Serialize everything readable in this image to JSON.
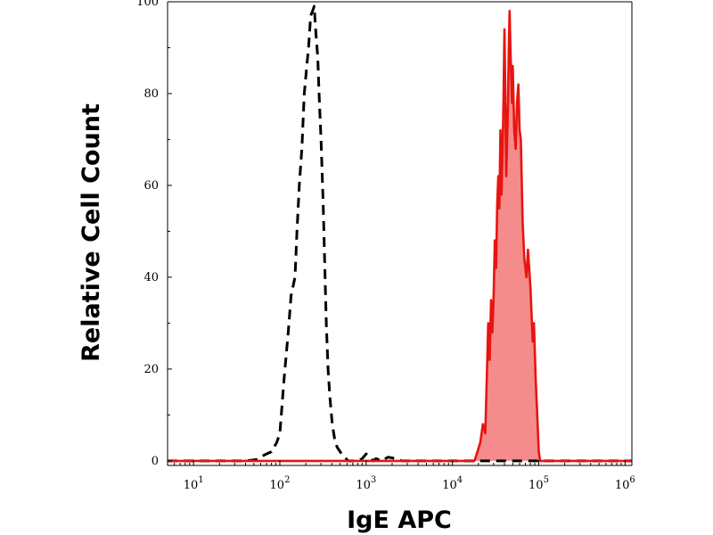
{
  "chart_data": {
    "type": "area",
    "title": "",
    "xlabel": "IgE APC",
    "ylabel": "Relative Cell Count",
    "xscale": "log",
    "xlim": [
      5,
      1200000
    ],
    "ylim": [
      -1,
      100
    ],
    "x_ticks": [
      {
        "base": "10",
        "exp": "1",
        "value": 10
      },
      {
        "base": "10",
        "exp": "2",
        "value": 100
      },
      {
        "base": "10",
        "exp": "3",
        "value": 1000
      },
      {
        "base": "10",
        "exp": "4",
        "value": 10000
      },
      {
        "base": "10",
        "exp": "5",
        "value": 100000
      },
      {
        "base": "10",
        "exp": "6",
        "value": 1000000
      }
    ],
    "y_ticks": [
      {
        "label": "0",
        "value": 0
      },
      {
        "label": "20",
        "value": 20
      },
      {
        "label": "40",
        "value": 40
      },
      {
        "label": "60",
        "value": 60
      },
      {
        "label": "80",
        "value": 80
      },
      {
        "label": "100",
        "value": 100
      }
    ],
    "grid": false,
    "legend": "none",
    "series": [
      {
        "style": "dashed",
        "color": "#000000",
        "fill": "none",
        "points": [
          [
            5,
            0
          ],
          [
            40,
            0
          ],
          [
            55,
            0.3
          ],
          [
            62,
            1
          ],
          [
            70,
            1.5
          ],
          [
            80,
            2
          ],
          [
            92,
            4
          ],
          [
            100,
            6
          ],
          [
            112,
            18
          ],
          [
            125,
            28
          ],
          [
            135,
            36
          ],
          [
            150,
            40
          ],
          [
            158,
            50
          ],
          [
            168,
            60
          ],
          [
            180,
            68
          ],
          [
            192,
            80
          ],
          [
            205,
            86
          ],
          [
            215,
            90
          ],
          [
            228,
            97
          ],
          [
            240,
            98
          ],
          [
            250,
            99
          ],
          [
            262,
            93
          ],
          [
            275,
            88
          ],
          [
            285,
            80
          ],
          [
            300,
            70
          ],
          [
            318,
            56
          ],
          [
            330,
            44
          ],
          [
            345,
            30
          ],
          [
            362,
            20
          ],
          [
            380,
            14
          ],
          [
            405,
            8
          ],
          [
            430,
            5
          ],
          [
            460,
            3
          ],
          [
            520,
            1.5
          ],
          [
            620,
            0
          ],
          [
            800,
            0
          ],
          [
            900,
            0.5
          ],
          [
            1000,
            1.5
          ],
          [
            1100,
            1
          ],
          [
            1200,
            0
          ],
          [
            1300,
            0.5
          ],
          [
            1500,
            0
          ],
          [
            1800,
            0.8
          ],
          [
            2200,
            0.5
          ],
          [
            2600,
            0
          ],
          [
            5000,
            0
          ],
          [
            1200000,
            0
          ]
        ]
      },
      {
        "style": "solid",
        "color": "#e8140f",
        "fill": "#f48c8c",
        "points": [
          [
            5,
            0
          ],
          [
            18000,
            0
          ],
          [
            19500,
            2
          ],
          [
            21000,
            4
          ],
          [
            22500,
            8
          ],
          [
            24000,
            6
          ],
          [
            25000,
            18
          ],
          [
            26000,
            30
          ],
          [
            27000,
            22
          ],
          [
            28000,
            35
          ],
          [
            29000,
            28
          ],
          [
            30000,
            36
          ],
          [
            31000,
            48
          ],
          [
            32000,
            42
          ],
          [
            33000,
            56
          ],
          [
            34000,
            62
          ],
          [
            35000,
            55
          ],
          [
            36000,
            72
          ],
          [
            37000,
            58
          ],
          [
            38000,
            67
          ],
          [
            39000,
            78
          ],
          [
            40000,
            94
          ],
          [
            41000,
            80
          ],
          [
            42000,
            62
          ],
          [
            43000,
            70
          ],
          [
            44000,
            78
          ],
          [
            45000,
            90
          ],
          [
            46000,
            98
          ],
          [
            47000,
            90
          ],
          [
            48000,
            84
          ],
          [
            49000,
            78
          ],
          [
            50000,
            86
          ],
          [
            52000,
            72
          ],
          [
            54000,
            68
          ],
          [
            56000,
            78
          ],
          [
            58000,
            82
          ],
          [
            60000,
            72
          ],
          [
            62000,
            70
          ],
          [
            65000,
            52
          ],
          [
            68000,
            44
          ],
          [
            72000,
            40
          ],
          [
            75000,
            46
          ],
          [
            80000,
            38
          ],
          [
            85000,
            26
          ],
          [
            88000,
            30
          ],
          [
            92000,
            18
          ],
          [
            96000,
            10
          ],
          [
            100000,
            2
          ],
          [
            104000,
            0
          ],
          [
            1200000,
            0
          ]
        ]
      }
    ]
  }
}
